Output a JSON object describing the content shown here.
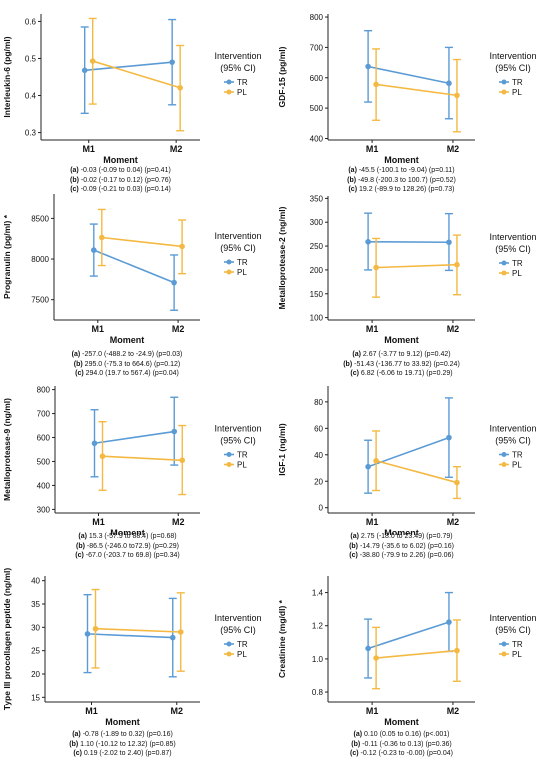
{
  "chart_data": [
    {
      "type": "line",
      "ylabel": "Interleukin-6 (pg/ml)",
      "xlabel": "Moment",
      "categories": [
        "M1",
        "M2"
      ],
      "yticks": [
        "0.3",
        "0.4",
        "0.5",
        "0.6"
      ],
      "ylim": [
        0.28,
        0.62
      ],
      "legend": {
        "title1": "Intervention",
        "title2": "(95% CI)",
        "placement": "right"
      },
      "series": [
        {
          "name": "TR",
          "color": "#5b9bd5",
          "values": [
            0.468,
            0.49
          ],
          "lower": [
            0.352,
            0.375
          ],
          "upper": [
            0.585,
            0.605
          ]
        },
        {
          "name": "PL",
          "color": "#f4b942",
          "values": [
            0.493,
            0.421
          ],
          "lower": [
            0.377,
            0.305
          ],
          "upper": [
            0.608,
            0.535
          ]
        }
      ],
      "notes": [
        {
          "tag": "(a)",
          "text": " -0.03 (-0.09 to 0.04) (p=0.41)"
        },
        {
          "tag": "(b)",
          "text": " -0.02 (-0.17 to 0.12) (p=0.76)"
        },
        {
          "tag": "(c)",
          "text": " -0.09 (-0.21 to 0.03) (p=0.14)"
        }
      ]
    },
    {
      "type": "line",
      "ylabel": "GDF-15 (pg/ml)",
      "xlabel": "Moment",
      "categories": [
        "M1",
        "M2"
      ],
      "yticks": [
        "400",
        "500",
        "600",
        "700",
        "800"
      ],
      "ylim": [
        395,
        810
      ],
      "legend": {
        "title1": "Intervention",
        "title2": "(95% CI)",
        "placement": "right"
      },
      "series": [
        {
          "name": "TR",
          "color": "#5b9bd5",
          "values": [
            637,
            582
          ],
          "lower": [
            520,
            465
          ],
          "upper": [
            755,
            700
          ]
        },
        {
          "name": "PL",
          "color": "#f4b942",
          "values": [
            578,
            542
          ],
          "lower": [
            460,
            422
          ],
          "upper": [
            695,
            660
          ]
        }
      ],
      "notes": [
        {
          "tag": "(a)",
          "text": " -45.5 (-100.1 to -9.04) (p=0.11)"
        },
        {
          "tag": "(b)",
          "text": " -49.8 (-200.3 to 100.7) (p=0.52)"
        },
        {
          "tag": "(c)",
          "text": " 19.2 (-89.9 to 128.26) (p=0.73)"
        }
      ]
    },
    {
      "type": "line",
      "ylabel": "Progranulin (pg/ml) *",
      "xlabel": "Moment",
      "categories": [
        "M1",
        "M2"
      ],
      "yticks": [
        "7500",
        "8000",
        "8500"
      ],
      "ylim": [
        7250,
        8800
      ],
      "legend": {
        "title1": "Intervention",
        "title2": "(95% CI)",
        "placement": "right"
      },
      "series": [
        {
          "name": "TR",
          "color": "#5b9bd5",
          "values": [
            8110,
            7710
          ],
          "lower": [
            7790,
            7370
          ],
          "upper": [
            8430,
            8050
          ]
        },
        {
          "name": "PL",
          "color": "#f4b942",
          "values": [
            8265,
            8155
          ],
          "lower": [
            7920,
            7820
          ],
          "upper": [
            8610,
            8480
          ]
        }
      ],
      "notes": [
        {
          "tag": "(a)",
          "text": " -257.0 (-488.2 to -24.9) (p=0.03)"
        },
        {
          "tag": "(b)",
          "text": " 295.0 (-75.3 to 664.6) (p=0.12)"
        },
        {
          "tag": "(c)",
          "text": " 294.0 (19.7 to 567.4) (p=0.04)"
        }
      ]
    },
    {
      "type": "line",
      "ylabel": "Metalloprotease-2 (ng/ml)",
      "xlabel": "Moment",
      "categories": [
        "M1",
        "M2"
      ],
      "yticks": [
        "100",
        "150",
        "200",
        "250",
        "300",
        "350"
      ],
      "ylim": [
        95,
        355
      ],
      "legend": {
        "title1": "Intervention",
        "title2": "(95% CI)",
        "placement": "right"
      },
      "series": [
        {
          "name": "TR",
          "color": "#5b9bd5",
          "values": [
            259,
            258
          ],
          "lower": [
            200,
            199
          ],
          "upper": [
            319,
            318
          ]
        },
        {
          "name": "PL",
          "color": "#f4b942",
          "values": [
            205,
            211
          ],
          "lower": [
            143,
            148
          ],
          "upper": [
            266,
            273
          ]
        }
      ],
      "notes": [
        {
          "tag": "(a)",
          "text": " 2.67 (-3.77 to 9.12) (p=0.42)"
        },
        {
          "tag": "(b)",
          "text": " -51.43 (-136.77 to 33.92) (p=0.24)"
        },
        {
          "tag": "(c)",
          "text": " 6.82 (-6.06 to 19.71) (p=0.29)"
        }
      ]
    },
    {
      "type": "line",
      "ylabel": "Metalloprotease-9 (ng/ml)",
      "xlabel": "Moment",
      "categories": [
        "M1",
        "M2"
      ],
      "yticks": [
        "300",
        "400",
        "500",
        "600",
        "700",
        "800"
      ],
      "ylim": [
        285,
        815
      ],
      "legend": {
        "title1": "Intervention",
        "title2": "(95% CI)",
        "placement": "right"
      },
      "series": [
        {
          "name": "TR",
          "color": "#5b9bd5",
          "values": [
            576,
            625
          ],
          "lower": [
            436,
            485
          ],
          "upper": [
            716,
            768
          ]
        },
        {
          "name": "PL",
          "color": "#f4b942",
          "values": [
            522,
            505
          ],
          "lower": [
            380,
            362
          ],
          "upper": [
            666,
            650
          ]
        }
      ],
      "notes": [
        {
          "tag": "(a)",
          "text": " 15.3 (-57.9 to 88.4) (p=0.68)"
        },
        {
          "tag": "(b)",
          "text": " -86.5 (-246.0 to72.9) (p=0.29)"
        },
        {
          "tag": "(c)",
          "text": " -67.0 (-203.7 to 69.8) (p=0.34)"
        }
      ]
    },
    {
      "type": "line",
      "ylabel": "IGF-1 (ng/ml)",
      "xlabel": "Moment",
      "categories": [
        "M1",
        "M2"
      ],
      "yticks": [
        "0",
        "20",
        "40",
        "60",
        "80"
      ],
      "ylim": [
        -4,
        92
      ],
      "legend": {
        "title1": "Intervention",
        "title2": "(95% CI)",
        "placement": "right"
      },
      "series": [
        {
          "name": "TR",
          "color": "#5b9bd5",
          "values": [
            31,
            53
          ],
          "lower": [
            11,
            23
          ],
          "upper": [
            51,
            83
          ]
        },
        {
          "name": "PL",
          "color": "#f4b942",
          "values": [
            35.5,
            19
          ],
          "lower": [
            13,
            7
          ],
          "upper": [
            58,
            31
          ]
        }
      ],
      "notes": [
        {
          "tag": "(a)",
          "text": " 2.75 (-18.0 to 23.49) (p=0.79)"
        },
        {
          "tag": "(b)",
          "text": " -14.79 (-35.6 to 6.02) (p=0.16)"
        },
        {
          "tag": "(c)",
          "text": " -38.80 (-79.9 to 2.26) (p=0.06)"
        }
      ]
    },
    {
      "type": "line",
      "ylabel": "Type III procollagen peptide (ng/ml)",
      "xlabel": "Moment",
      "categories": [
        "M1",
        "M2"
      ],
      "yticks": [
        "15",
        "20",
        "25",
        "30",
        "35",
        "40"
      ],
      "ylim": [
        14,
        41
      ],
      "legend": {
        "title1": "Intervention",
        "title2": "(95% CI)",
        "placement": "right"
      },
      "series": [
        {
          "name": "TR",
          "color": "#5b9bd5",
          "values": [
            28.6,
            27.8
          ],
          "lower": [
            20.3,
            19.4
          ],
          "upper": [
            37.0,
            36.2
          ]
        },
        {
          "name": "PL",
          "color": "#f4b942",
          "values": [
            29.7,
            29.0
          ],
          "lower": [
            21.3,
            20.6
          ],
          "upper": [
            38.1,
            37.4
          ]
        }
      ],
      "notes": [
        {
          "tag": "(a)",
          "text": " -0.78 (-1.89 to 0.32) (p=0.16)"
        },
        {
          "tag": "(b)",
          "text": " 1.10 (-10.12 to 12.32) (p=0.85)"
        },
        {
          "tag": "(c)",
          "text": " 0.19 (-2.02 to 2.40) (p=0.87)"
        }
      ]
    },
    {
      "type": "line",
      "ylabel": "Creatinine (mg/dl) *",
      "xlabel": "Moment",
      "categories": [
        "M1",
        "M2"
      ],
      "yticks": [
        "0.8",
        "1.0",
        "1.2",
        "1.4"
      ],
      "ylim": [
        0.74,
        1.5
      ],
      "legend": {
        "title1": "Intervention",
        "title2": "(95% CI)",
        "placement": "right"
      },
      "series": [
        {
          "name": "TR",
          "color": "#5b9bd5",
          "values": [
            1.063,
            1.222
          ],
          "lower": [
            0.885,
            1.045
          ],
          "upper": [
            1.24,
            1.4
          ]
        },
        {
          "name": "PL",
          "color": "#f4b942",
          "values": [
            1.005,
            1.05
          ],
          "lower": [
            0.82,
            0.865
          ],
          "upper": [
            1.19,
            1.235
          ]
        }
      ],
      "notes": [
        {
          "tag": "(a)",
          "text": " 0.10 (0.05 to 0.16) (p<.001)"
        },
        {
          "tag": "(b)",
          "text": " -0.11 (-0.36 to 0.13) (p=0.36)"
        },
        {
          "tag": "(c)",
          "text": " -0.12 (-0.23 to -0.00) (p=0.04)"
        }
      ]
    }
  ]
}
